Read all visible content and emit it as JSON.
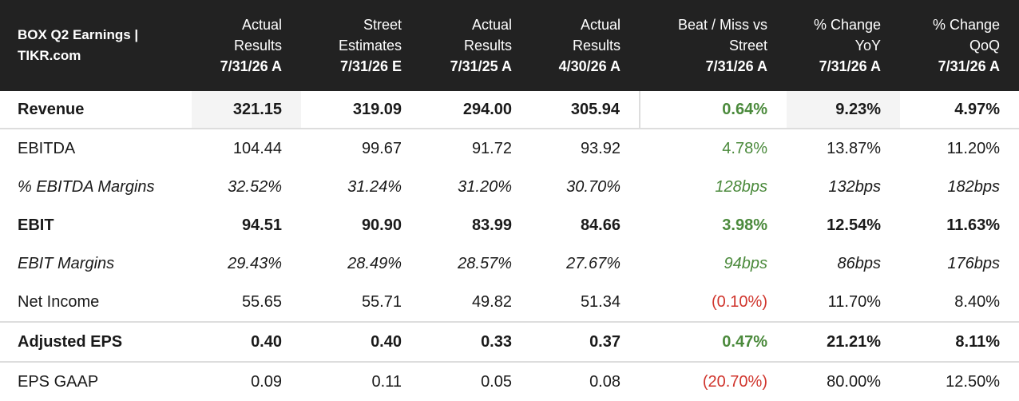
{
  "header": {
    "title_line1": "BOX Q2 Earnings |",
    "title_line2": "TIKR.com",
    "columns": [
      {
        "lines": [
          "Actual",
          "Results"
        ],
        "date": "7/31/26 A"
      },
      {
        "lines": [
          "Street",
          "Estimates"
        ],
        "date": "7/31/26 E"
      },
      {
        "lines": [
          "Actual",
          "Results"
        ],
        "date": "7/31/25 A"
      },
      {
        "lines": [
          "Actual",
          "Results"
        ],
        "date": "4/30/26 A"
      },
      {
        "lines": [
          "Beat / Miss vs",
          "Street"
        ],
        "date": "7/31/26 A"
      },
      {
        "lines": [
          "% Change",
          "YoY"
        ],
        "date": "7/31/26 A"
      },
      {
        "lines": [
          "% Change",
          "QoQ"
        ],
        "date": "7/31/26 A"
      }
    ]
  },
  "rows": [
    {
      "label": "Revenue",
      "values": [
        "321.15",
        "319.09",
        "294.00",
        "305.94",
        "0.64%",
        "9.23%",
        "4.97%"
      ]
    },
    {
      "label": "EBITDA",
      "values": [
        "104.44",
        "99.67",
        "91.72",
        "93.92",
        "4.78%",
        "13.87%",
        "11.20%"
      ]
    },
    {
      "label": "% EBITDA Margins",
      "values": [
        "32.52%",
        "31.24%",
        "31.20%",
        "30.70%",
        "128bps",
        "132bps",
        "182bps"
      ]
    },
    {
      "label": "EBIT",
      "values": [
        "94.51",
        "90.90",
        "83.99",
        "84.66",
        "3.98%",
        "12.54%",
        "11.63%"
      ]
    },
    {
      "label": "EBIT Margins",
      "values": [
        "29.43%",
        "28.49%",
        "28.57%",
        "27.67%",
        "94bps",
        "86bps",
        "176bps"
      ]
    },
    {
      "label": "Net Income",
      "values": [
        "55.65",
        "55.71",
        "49.82",
        "51.34",
        "(0.10%)",
        "11.70%",
        "8.40%"
      ]
    },
    {
      "label": "Adjusted EPS",
      "values": [
        "0.40",
        "0.40",
        "0.33",
        "0.37",
        "0.47%",
        "21.21%",
        "8.11%"
      ]
    },
    {
      "label": "EPS GAAP",
      "values": [
        "0.09",
        "0.11",
        "0.05",
        "0.08",
        "(20.70%)",
        "80.00%",
        "12.50%"
      ]
    }
  ],
  "colors": {
    "header_bg": "#222222",
    "positive": "#4b8a3c",
    "negative": "#d0342c",
    "shade": "#f4f4f4"
  }
}
